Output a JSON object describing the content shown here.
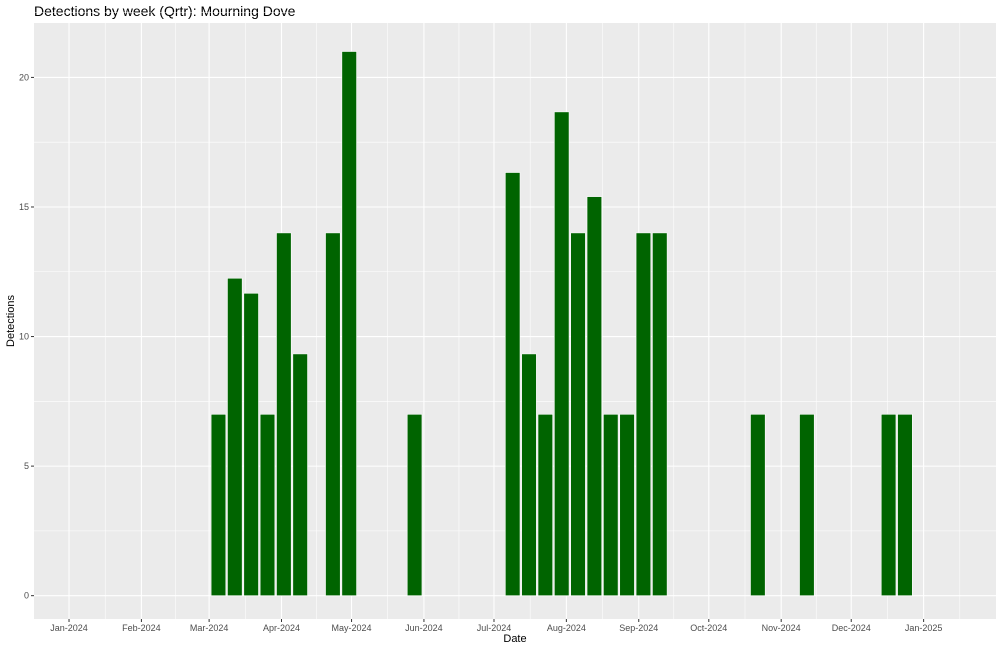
{
  "chart_data": {
    "type": "bar",
    "title": "Detections by week (Qrtr): Mourning Dove",
    "xlabel": "Date",
    "ylabel": "Detections",
    "xlim": [
      "2023-12-17",
      "2025-02-01"
    ],
    "ylim": [
      -0.9,
      22.1
    ],
    "bar_width_days": 6.3,
    "x_ticks": [
      {
        "date": "2024-01-01",
        "label": "Jan-2024"
      },
      {
        "date": "2024-02-01",
        "label": "Feb-2024"
      },
      {
        "date": "2024-03-01",
        "label": "Mar-2024"
      },
      {
        "date": "2024-04-01",
        "label": "Apr-2024"
      },
      {
        "date": "2024-05-01",
        "label": "May-2024"
      },
      {
        "date": "2024-06-01",
        "label": "Jun-2024"
      },
      {
        "date": "2024-07-01",
        "label": "Jul-2024"
      },
      {
        "date": "2024-08-01",
        "label": "Aug-2024"
      },
      {
        "date": "2024-09-01",
        "label": "Sep-2024"
      },
      {
        "date": "2024-10-01",
        "label": "Oct-2024"
      },
      {
        "date": "2024-11-01",
        "label": "Nov-2024"
      },
      {
        "date": "2024-12-01",
        "label": "Dec-2024"
      },
      {
        "date": "2025-01-01",
        "label": "Jan-2025"
      }
    ],
    "y_ticks": [
      0,
      5,
      10,
      15,
      20
    ],
    "x": [
      "2024-03-05",
      "2024-03-12",
      "2024-03-19",
      "2024-03-26",
      "2024-04-02",
      "2024-04-09",
      "2024-04-23",
      "2024-04-30",
      "2024-05-28",
      "2024-07-09",
      "2024-07-16",
      "2024-07-23",
      "2024-07-30",
      "2024-08-06",
      "2024-08-13",
      "2024-08-20",
      "2024-08-27",
      "2024-09-03",
      "2024-09-10",
      "2024-10-22",
      "2024-11-12",
      "2024-12-17",
      "2024-12-24"
    ],
    "values": [
      7,
      12.25,
      11.67,
      7,
      14,
      9.33,
      14,
      21,
      7,
      16.33,
      9.33,
      7,
      18.67,
      14,
      15.4,
      7,
      7,
      14,
      14,
      7,
      7,
      7,
      7
    ],
    "grid": true,
    "colors": {
      "bar": "#006400",
      "bar_outline": "#ffffff",
      "panel": "#ebebeb",
      "grid_major": "#ffffff",
      "tick_label": "#4d4d4d",
      "tick_mark": "#333333"
    }
  }
}
